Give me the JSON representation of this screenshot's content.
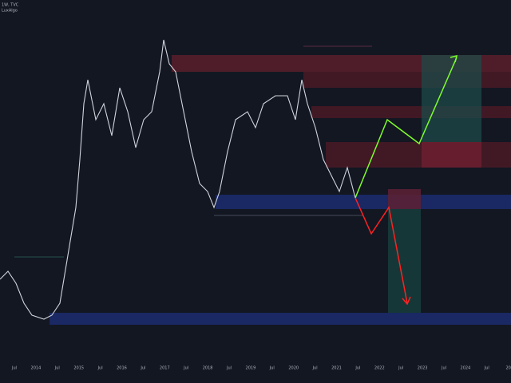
{
  "header": {
    "symbol": "1W, TVC",
    "indicator": "LuxAlgo"
  },
  "x_axis": {
    "labels": [
      "Jul",
      "2014",
      "Jul",
      "2015",
      "Jul",
      "2016",
      "Jul",
      "2017",
      "Jul",
      "2018",
      "Jul",
      "2019",
      "Jul",
      "2020",
      "Jul",
      "2021",
      "Jul",
      "2022",
      "Jul",
      "2023",
      "Jul",
      "2024",
      "Jul",
      "20"
    ]
  }
}
